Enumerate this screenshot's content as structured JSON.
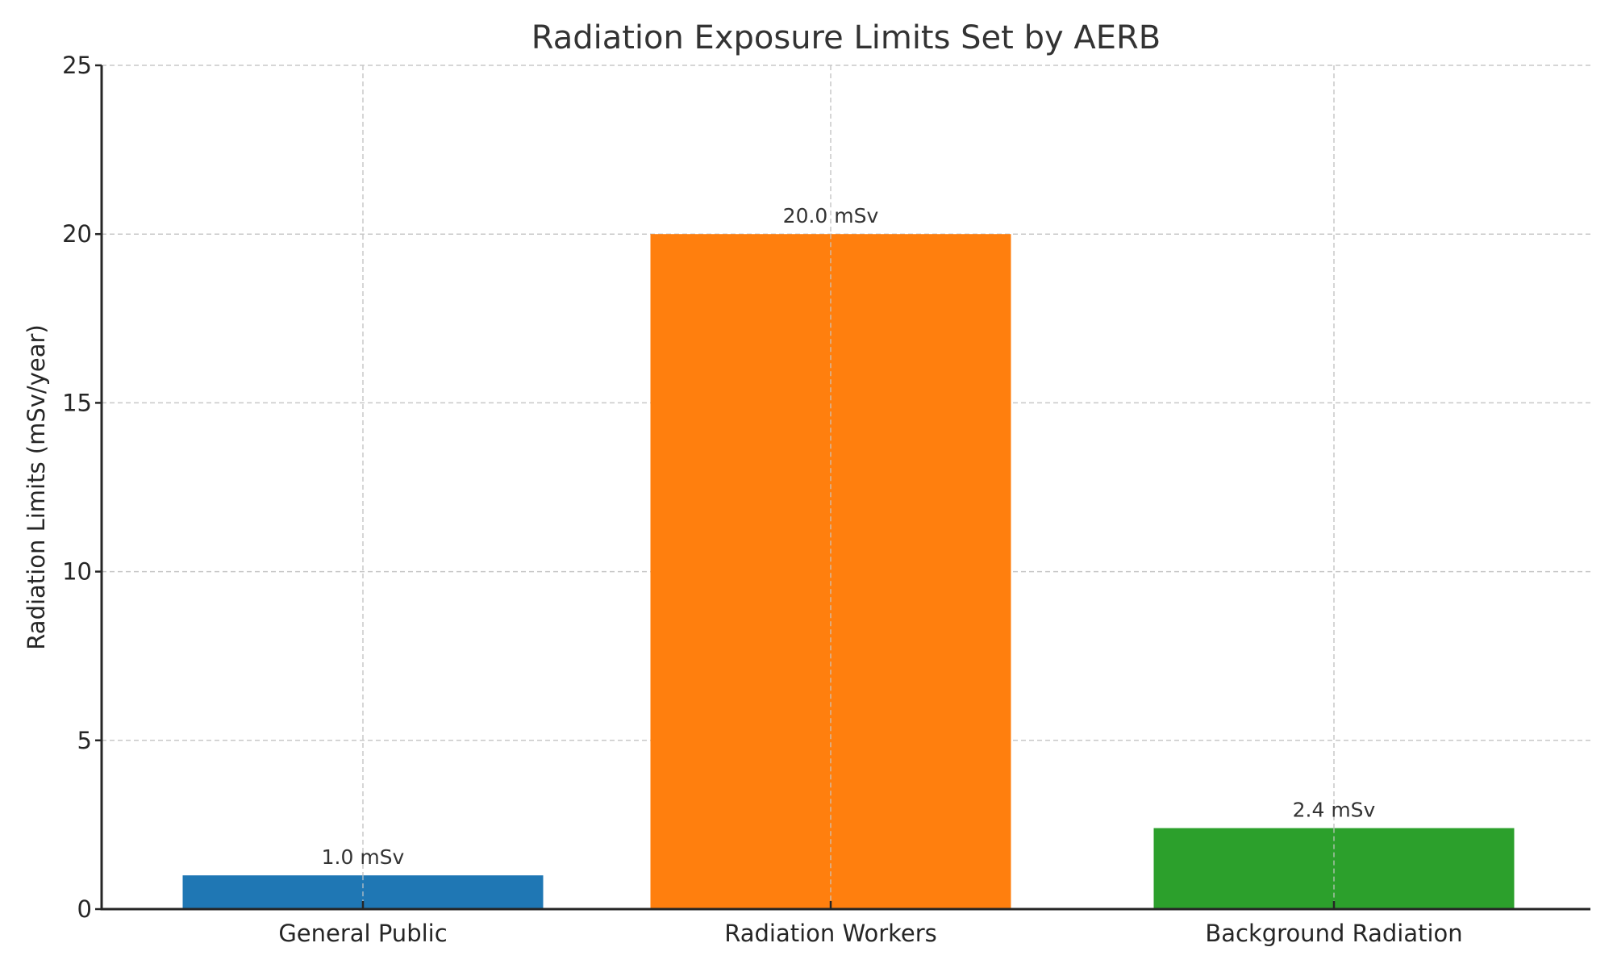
{
  "chart_data": {
    "type": "bar",
    "title": "Radiation Exposure Limits Set by AERB",
    "xlabel": "",
    "ylabel": "Radiation Limits (mSv/year)",
    "categories": [
      "General Public",
      "Radiation Workers",
      "Background Radiation"
    ],
    "values": [
      1.0,
      20.0,
      2.4
    ],
    "bar_labels": [
      "1.0 mSv",
      "20.0 mSv",
      "2.4 mSv"
    ],
    "colors": [
      "#1f77b4",
      "#ff7f0e",
      "#2ca02c"
    ],
    "ylim": [
      0,
      25
    ],
    "yticks": [
      0,
      5,
      10,
      15,
      20,
      25
    ],
    "grid": true,
    "grid_style": "dashed",
    "legend": null
  }
}
